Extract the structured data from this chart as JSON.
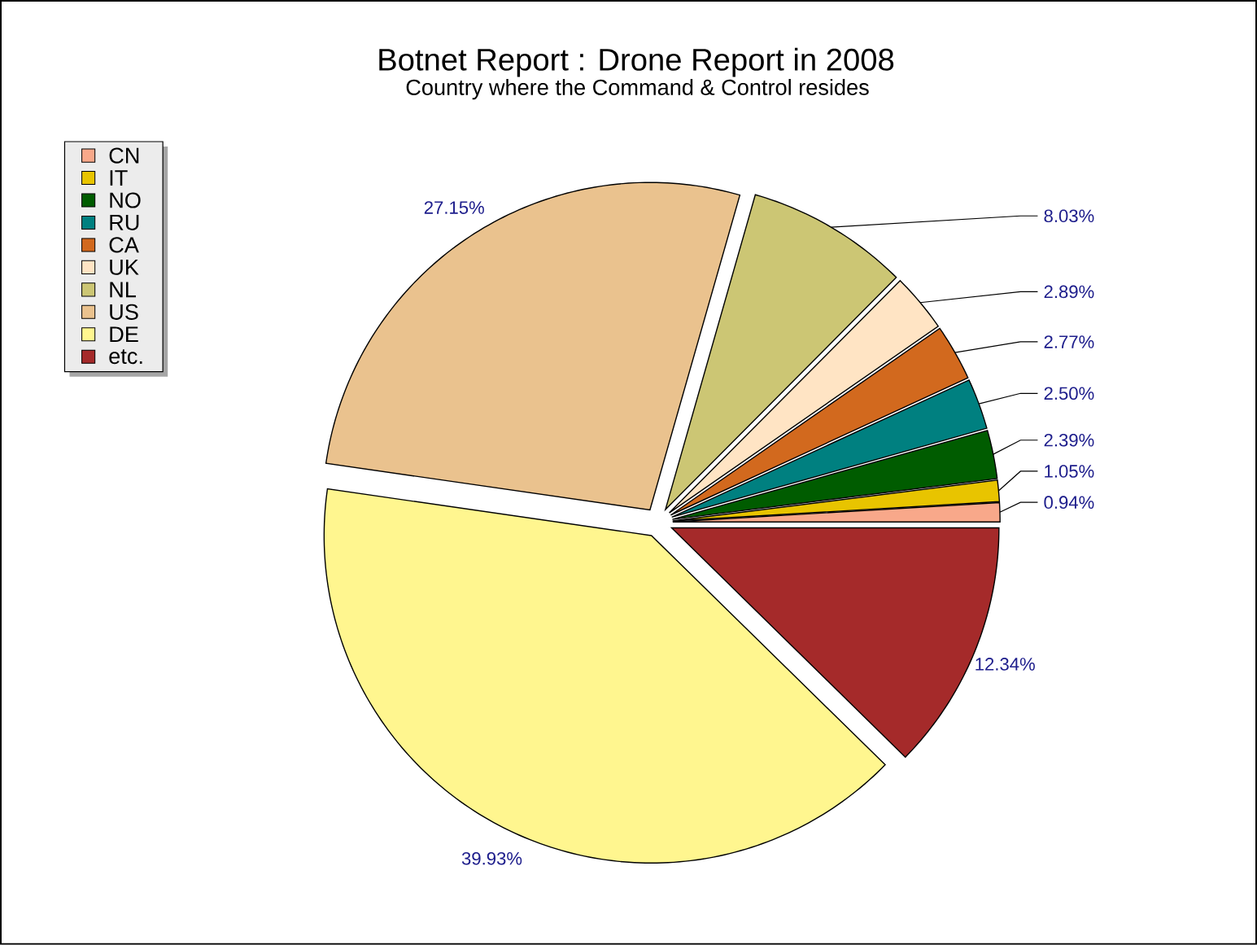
{
  "chart_data": {
    "type": "pie",
    "title": "Botnet Report : Drone Report in 2008",
    "subtitle": "Country where the Command & Control resides",
    "categories": [
      "CN",
      "IT",
      "NO",
      "RU",
      "CA",
      "UK",
      "NL",
      "US",
      "DE",
      "etc."
    ],
    "values": [
      0.94,
      1.05,
      2.39,
      2.5,
      2.77,
      2.89,
      8.03,
      27.15,
      39.93,
      12.34
    ],
    "value_labels": [
      "0.94%",
      "1.05%",
      "2.39%",
      "2.50%",
      "2.77%",
      "2.89%",
      "8.03%",
      "27.15%",
      "39.93%",
      "12.34%"
    ],
    "colors": [
      "#f8a88a",
      "#e8c400",
      "#005c00",
      "#008080",
      "#d2691e",
      "#ffe4c4",
      "#ccc674",
      "#eac28e",
      "#fff68f",
      "#a52a2a"
    ],
    "legend": "top left"
  }
}
